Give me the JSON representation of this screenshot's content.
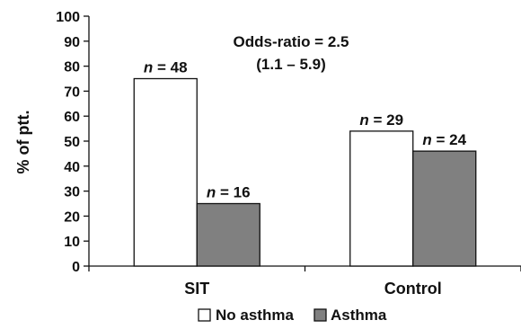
{
  "chart_data": {
    "type": "bar",
    "categories": [
      "SIT",
      "Control"
    ],
    "series": [
      {
        "name": "No asthma",
        "values": [
          75,
          54
        ],
        "n_labels": [
          "n = 48",
          "n = 29"
        ],
        "color": "#ffffff"
      },
      {
        "name": "Asthma",
        "values": [
          25,
          46
        ],
        "n_labels": [
          "n = 16",
          "n = 24"
        ],
        "color": "#808080"
      }
    ],
    "ylabel": "% of ptt.",
    "xlabel": "",
    "ylim": [
      0,
      100
    ],
    "yticks": [
      0,
      10,
      20,
      30,
      40,
      50,
      60,
      70,
      80,
      90,
      100
    ],
    "grid": false,
    "legend_position": "bottom",
    "annotation": {
      "line1": "Odds-ratio = 2.5",
      "line2": "(1.1 – 5.9)"
    }
  }
}
